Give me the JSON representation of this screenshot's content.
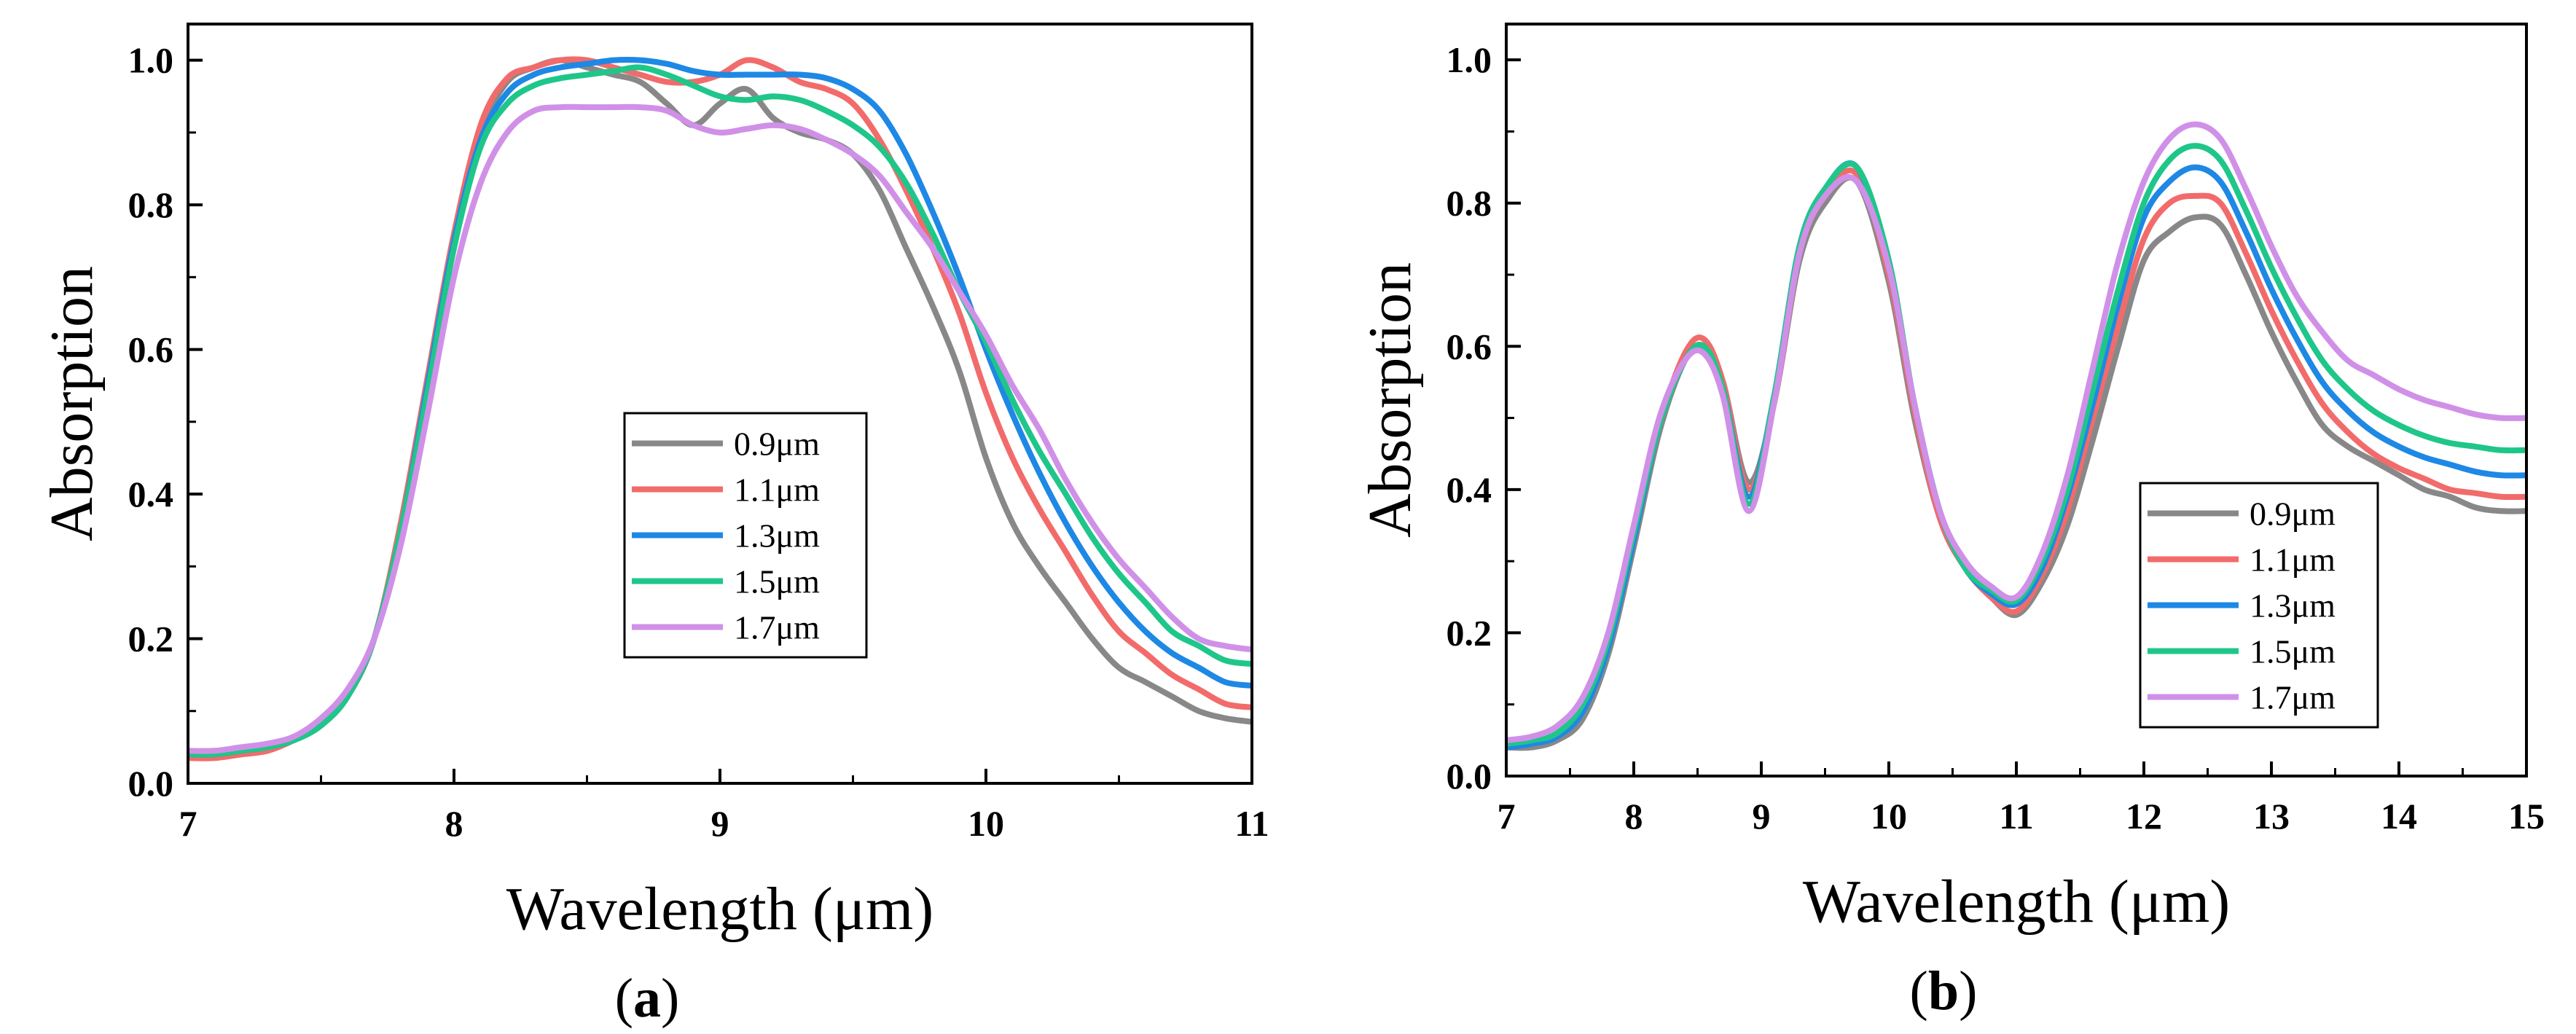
{
  "chart_data": [
    {
      "type": "line",
      "panel_label": "a",
      "xlabel": "Wavelength (μm)",
      "ylabel": "Absorption",
      "xlim": [
        7,
        11
      ],
      "ylim": [
        0,
        1.05
      ],
      "xticks": [
        7,
        8,
        9,
        10,
        11
      ],
      "xtick_labels": [
        "7",
        "8",
        "9",
        "10",
        "11"
      ],
      "yticks": [
        0,
        0.2,
        0.4,
        0.6,
        0.8,
        1.0
      ],
      "ytick_labels": [
        "0.0",
        "0.2",
        "0.4",
        "0.6",
        "0.8",
        "1.0"
      ],
      "grid": false,
      "legend_position": "center-right",
      "series": [
        {
          "name": "0.9μm",
          "color": "#888888",
          "x": [
            7.0,
            7.1,
            7.2,
            7.3,
            7.4,
            7.5,
            7.6,
            7.7,
            7.8,
            7.9,
            8.0,
            8.1,
            8.2,
            8.3,
            8.4,
            8.5,
            8.6,
            8.7,
            8.8,
            8.9,
            9.0,
            9.1,
            9.2,
            9.3,
            9.4,
            9.5,
            9.6,
            9.7,
            9.8,
            9.9,
            10.0,
            10.1,
            10.2,
            10.3,
            10.4,
            10.5,
            10.6,
            10.7,
            10.8,
            10.9,
            11.0
          ],
          "y": [
            0.04,
            0.04,
            0.04,
            0.05,
            0.06,
            0.08,
            0.12,
            0.2,
            0.36,
            0.56,
            0.76,
            0.9,
            0.97,
            0.99,
            1.0,
            0.99,
            0.98,
            0.97,
            0.94,
            0.91,
            0.94,
            0.96,
            0.92,
            0.9,
            0.89,
            0.87,
            0.82,
            0.74,
            0.66,
            0.57,
            0.45,
            0.36,
            0.3,
            0.25,
            0.2,
            0.16,
            0.14,
            0.12,
            0.1,
            0.09,
            0.085
          ]
        },
        {
          "name": "1.1μm",
          "color": "#f26b6b",
          "x": [
            7.0,
            7.1,
            7.2,
            7.3,
            7.4,
            7.5,
            7.6,
            7.7,
            7.8,
            7.9,
            8.0,
            8.1,
            8.2,
            8.3,
            8.4,
            8.5,
            8.6,
            8.7,
            8.8,
            8.9,
            9.0,
            9.1,
            9.2,
            9.3,
            9.4,
            9.5,
            9.6,
            9.7,
            9.8,
            9.9,
            10.0,
            10.1,
            10.2,
            10.3,
            10.4,
            10.5,
            10.6,
            10.7,
            10.8,
            10.9,
            11.0
          ],
          "y": [
            0.035,
            0.035,
            0.04,
            0.045,
            0.06,
            0.08,
            0.12,
            0.2,
            0.36,
            0.56,
            0.76,
            0.91,
            0.975,
            0.99,
            1.0,
            1.0,
            0.99,
            0.98,
            0.97,
            0.97,
            0.98,
            1.0,
            0.99,
            0.97,
            0.96,
            0.94,
            0.89,
            0.82,
            0.74,
            0.65,
            0.54,
            0.45,
            0.38,
            0.32,
            0.26,
            0.21,
            0.18,
            0.15,
            0.13,
            0.11,
            0.105
          ]
        },
        {
          "name": "1.3μm",
          "color": "#1e88e5",
          "x": [
            7.0,
            7.1,
            7.2,
            7.3,
            7.4,
            7.5,
            7.6,
            7.7,
            7.8,
            7.9,
            8.0,
            8.1,
            8.2,
            8.3,
            8.4,
            8.5,
            8.6,
            8.7,
            8.8,
            8.9,
            9.0,
            9.1,
            9.2,
            9.3,
            9.4,
            9.5,
            9.6,
            9.7,
            9.8,
            9.9,
            10.0,
            10.1,
            10.2,
            10.3,
            10.4,
            10.5,
            10.6,
            10.7,
            10.8,
            10.9,
            11.0
          ],
          "y": [
            0.04,
            0.04,
            0.045,
            0.05,
            0.06,
            0.08,
            0.12,
            0.2,
            0.35,
            0.55,
            0.75,
            0.89,
            0.955,
            0.98,
            0.99,
            0.995,
            1.0,
            1.0,
            0.995,
            0.985,
            0.98,
            0.98,
            0.98,
            0.98,
            0.975,
            0.96,
            0.93,
            0.87,
            0.79,
            0.7,
            0.6,
            0.51,
            0.43,
            0.36,
            0.3,
            0.25,
            0.21,
            0.18,
            0.16,
            0.14,
            0.135
          ]
        },
        {
          "name": "1.5μm",
          "color": "#1fc68a",
          "x": [
            7.0,
            7.1,
            7.2,
            7.3,
            7.4,
            7.5,
            7.6,
            7.7,
            7.8,
            7.9,
            8.0,
            8.1,
            8.2,
            8.3,
            8.4,
            8.5,
            8.6,
            8.7,
            8.8,
            8.9,
            9.0,
            9.1,
            9.2,
            9.3,
            9.4,
            9.5,
            9.6,
            9.7,
            9.8,
            9.9,
            10.0,
            10.1,
            10.2,
            10.3,
            10.4,
            10.5,
            10.6,
            10.7,
            10.8,
            10.9,
            11.0
          ],
          "y": [
            0.04,
            0.04,
            0.045,
            0.05,
            0.06,
            0.08,
            0.12,
            0.2,
            0.35,
            0.54,
            0.74,
            0.88,
            0.94,
            0.965,
            0.975,
            0.98,
            0.985,
            0.99,
            0.98,
            0.965,
            0.95,
            0.945,
            0.95,
            0.945,
            0.93,
            0.91,
            0.88,
            0.83,
            0.76,
            0.68,
            0.61,
            0.53,
            0.46,
            0.4,
            0.34,
            0.29,
            0.25,
            0.21,
            0.19,
            0.17,
            0.165
          ]
        },
        {
          "name": "1.7μm",
          "color": "#d090e8",
          "x": [
            7.0,
            7.1,
            7.2,
            7.3,
            7.4,
            7.5,
            7.6,
            7.7,
            7.8,
            7.9,
            8.0,
            8.1,
            8.2,
            8.3,
            8.4,
            8.5,
            8.6,
            8.7,
            8.8,
            8.9,
            9.0,
            9.1,
            9.2,
            9.3,
            9.4,
            9.5,
            9.6,
            9.7,
            9.8,
            9.9,
            10.0,
            10.1,
            10.2,
            10.3,
            10.4,
            10.5,
            10.6,
            10.7,
            10.8,
            10.9,
            11.0
          ],
          "y": [
            0.045,
            0.045,
            0.05,
            0.055,
            0.065,
            0.09,
            0.13,
            0.2,
            0.33,
            0.51,
            0.7,
            0.83,
            0.9,
            0.93,
            0.935,
            0.935,
            0.935,
            0.935,
            0.93,
            0.91,
            0.9,
            0.905,
            0.91,
            0.905,
            0.89,
            0.87,
            0.84,
            0.79,
            0.74,
            0.68,
            0.62,
            0.55,
            0.49,
            0.42,
            0.36,
            0.31,
            0.27,
            0.23,
            0.2,
            0.19,
            0.185
          ]
        }
      ]
    },
    {
      "type": "line",
      "panel_label": "b",
      "xlabel": "Wavelength (μm)",
      "ylabel": "Absorption",
      "xlim": [
        7,
        15
      ],
      "ylim": [
        0,
        1.05
      ],
      "xticks": [
        7,
        8,
        9,
        10,
        11,
        12,
        13,
        14,
        15
      ],
      "xtick_labels": [
        "7",
        "8",
        "9",
        "10",
        "11",
        "12",
        "13",
        "14",
        "15"
      ],
      "yticks": [
        0,
        0.2,
        0.4,
        0.6,
        0.8,
        1.0
      ],
      "ytick_labels": [
        "0.0",
        "0.2",
        "0.4",
        "0.6",
        "0.8",
        "1.0"
      ],
      "grid": false,
      "legend_position": "center-right",
      "series": [
        {
          "name": "0.9μm",
          "color": "#888888",
          "x": [
            7.0,
            7.2,
            7.4,
            7.6,
            7.8,
            8.0,
            8.2,
            8.4,
            8.55,
            8.7,
            8.9,
            9.1,
            9.3,
            9.5,
            9.75,
            10.0,
            10.2,
            10.4,
            10.6,
            10.8,
            11.0,
            11.2,
            11.4,
            11.6,
            11.8,
            12.0,
            12.2,
            12.4,
            12.6,
            12.8,
            13.0,
            13.2,
            13.4,
            13.6,
            13.8,
            14.0,
            14.2,
            14.4,
            14.6,
            14.8,
            15.0
          ],
          "y": [
            0.04,
            0.04,
            0.05,
            0.08,
            0.17,
            0.32,
            0.48,
            0.58,
            0.6,
            0.55,
            0.41,
            0.52,
            0.72,
            0.8,
            0.83,
            0.69,
            0.5,
            0.36,
            0.29,
            0.25,
            0.225,
            0.27,
            0.35,
            0.47,
            0.6,
            0.72,
            0.76,
            0.78,
            0.77,
            0.7,
            0.62,
            0.55,
            0.49,
            0.46,
            0.44,
            0.42,
            0.4,
            0.39,
            0.375,
            0.37,
            0.37
          ]
        },
        {
          "name": "1.1μm",
          "color": "#f26b6b",
          "x": [
            7.0,
            7.2,
            7.4,
            7.6,
            7.8,
            8.0,
            8.2,
            8.4,
            8.55,
            8.7,
            8.9,
            9.1,
            9.3,
            9.5,
            9.75,
            10.0,
            10.2,
            10.4,
            10.6,
            10.8,
            11.0,
            11.2,
            11.4,
            11.6,
            11.8,
            12.0,
            12.2,
            12.4,
            12.6,
            12.8,
            13.0,
            13.2,
            13.4,
            13.6,
            13.8,
            14.0,
            14.2,
            14.4,
            14.6,
            14.8,
            15.0
          ],
          "y": [
            0.04,
            0.045,
            0.055,
            0.09,
            0.18,
            0.33,
            0.49,
            0.59,
            0.61,
            0.55,
            0.4,
            0.52,
            0.73,
            0.81,
            0.84,
            0.7,
            0.51,
            0.36,
            0.29,
            0.25,
            0.23,
            0.28,
            0.37,
            0.5,
            0.63,
            0.75,
            0.8,
            0.81,
            0.8,
            0.73,
            0.65,
            0.58,
            0.52,
            0.48,
            0.45,
            0.43,
            0.415,
            0.4,
            0.395,
            0.39,
            0.39
          ]
        },
        {
          "name": "1.3μm",
          "color": "#1e88e5",
          "x": [
            7.0,
            7.2,
            7.4,
            7.6,
            7.8,
            8.0,
            8.2,
            8.4,
            8.55,
            8.7,
            8.9,
            9.1,
            9.3,
            9.5,
            9.75,
            10.0,
            10.2,
            10.4,
            10.6,
            10.8,
            11.0,
            11.2,
            11.4,
            11.6,
            11.8,
            12.0,
            12.2,
            12.4,
            12.6,
            12.8,
            13.0,
            13.2,
            13.4,
            13.6,
            13.8,
            14.0,
            14.2,
            14.4,
            14.6,
            14.8,
            15.0
          ],
          "y": [
            0.04,
            0.045,
            0.055,
            0.09,
            0.18,
            0.33,
            0.49,
            0.58,
            0.6,
            0.54,
            0.39,
            0.53,
            0.74,
            0.82,
            0.85,
            0.71,
            0.52,
            0.37,
            0.29,
            0.255,
            0.24,
            0.29,
            0.39,
            0.52,
            0.66,
            0.78,
            0.83,
            0.85,
            0.83,
            0.76,
            0.68,
            0.61,
            0.55,
            0.51,
            0.48,
            0.46,
            0.445,
            0.435,
            0.425,
            0.42,
            0.42
          ]
        },
        {
          "name": "1.5μm",
          "color": "#1fc68a",
          "x": [
            7.0,
            7.2,
            7.4,
            7.6,
            7.8,
            8.0,
            8.2,
            8.4,
            8.55,
            8.7,
            8.9,
            9.1,
            9.3,
            9.5,
            9.75,
            10.0,
            10.2,
            10.4,
            10.6,
            10.8,
            11.0,
            11.2,
            11.4,
            11.6,
            11.8,
            12.0,
            12.2,
            12.4,
            12.6,
            12.8,
            13.0,
            13.2,
            13.4,
            13.6,
            13.8,
            14.0,
            14.2,
            14.4,
            14.6,
            14.8,
            15.0
          ],
          "y": [
            0.045,
            0.05,
            0.06,
            0.1,
            0.19,
            0.34,
            0.49,
            0.58,
            0.6,
            0.54,
            0.38,
            0.53,
            0.74,
            0.82,
            0.85,
            0.72,
            0.52,
            0.37,
            0.29,
            0.26,
            0.245,
            0.3,
            0.4,
            0.54,
            0.68,
            0.8,
            0.86,
            0.88,
            0.86,
            0.79,
            0.71,
            0.64,
            0.58,
            0.54,
            0.51,
            0.49,
            0.475,
            0.465,
            0.46,
            0.455,
            0.455
          ]
        },
        {
          "name": "1.7μm",
          "color": "#d090e8",
          "x": [
            7.0,
            7.2,
            7.4,
            7.6,
            7.8,
            8.0,
            8.2,
            8.4,
            8.55,
            8.7,
            8.9,
            9.1,
            9.3,
            9.5,
            9.75,
            10.0,
            10.2,
            10.4,
            10.6,
            10.8,
            11.0,
            11.2,
            11.4,
            11.6,
            11.8,
            12.0,
            12.2,
            12.4,
            12.6,
            12.8,
            13.0,
            13.2,
            13.4,
            13.6,
            13.8,
            14.0,
            14.2,
            14.4,
            14.6,
            14.8,
            15.0
          ],
          "y": [
            0.05,
            0.055,
            0.07,
            0.11,
            0.2,
            0.35,
            0.5,
            0.58,
            0.59,
            0.53,
            0.37,
            0.52,
            0.73,
            0.81,
            0.83,
            0.71,
            0.52,
            0.37,
            0.3,
            0.265,
            0.25,
            0.31,
            0.42,
            0.57,
            0.72,
            0.83,
            0.89,
            0.91,
            0.89,
            0.82,
            0.74,
            0.67,
            0.62,
            0.58,
            0.56,
            0.54,
            0.525,
            0.515,
            0.505,
            0.5,
            0.5
          ]
        }
      ]
    }
  ]
}
